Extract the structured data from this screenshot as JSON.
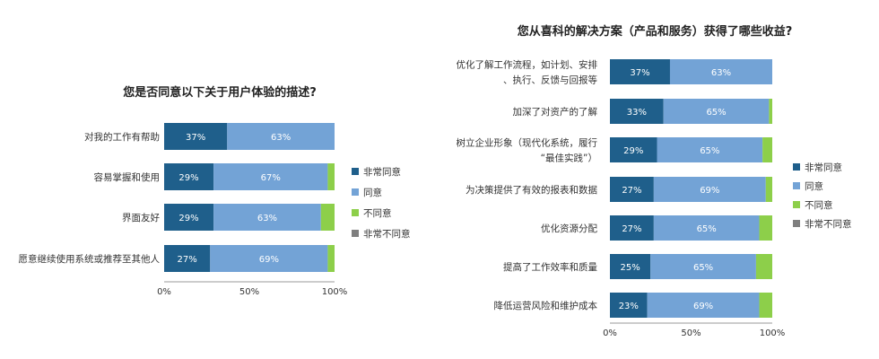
{
  "chart_data": [
    {
      "type": "bar",
      "orientation": "horizontal",
      "stacked": true,
      "percent_stacked": true,
      "title": "您是否同意以下关于用户体验的描述?",
      "categories": [
        "对我的工作有帮助",
        "容易掌握和使用",
        "界面友好",
        "愿意继续使用系统或推荐至其他人"
      ],
      "series": [
        {
          "name": "非常同意",
          "color": "#1f5f8b",
          "values": [
            37,
            29,
            29,
            27
          ]
        },
        {
          "name": "同意",
          "color": "#73a3d6",
          "values": [
            63,
            67,
            63,
            69
          ]
        },
        {
          "name": "不同意",
          "color": "#8dcf4a",
          "values": [
            0,
            4,
            8,
            4
          ]
        },
        {
          "name": "非常不同意",
          "color": "#7f7f7f",
          "values": [
            0,
            0,
            0,
            0
          ]
        }
      ],
      "x_ticks": [
        "0%",
        "50%",
        "100%"
      ],
      "xlim": [
        0,
        100
      ],
      "legend": "right",
      "grid": false
    },
    {
      "type": "bar",
      "orientation": "horizontal",
      "stacked": true,
      "percent_stacked": true,
      "title": "您从喜科的解决方案（产品和服务）获得了哪些收益?",
      "categories": [
        "优化了解工作流程，如计划、安排、执行、反馈与回报等",
        "加深了对资产的了解",
        "树立企业形象（现代化系统，履行“最佳实践”）",
        "为决策提供了有效的报表和数据",
        "优化资源分配",
        "提高了工作效率和质量",
        "降低运营风险和维护成本"
      ],
      "series": [
        {
          "name": "非常同意",
          "color": "#1f5f8b",
          "values": [
            37,
            33,
            29,
            27,
            27,
            25,
            23
          ]
        },
        {
          "name": "同意",
          "color": "#73a3d6",
          "values": [
            63,
            65,
            65,
            69,
            65,
            65,
            69
          ]
        },
        {
          "name": "不同意",
          "color": "#8dcf4a",
          "values": [
            0,
            2,
            6,
            4,
            8,
            10,
            8
          ]
        },
        {
          "name": "非常不同意",
          "color": "#7f7f7f",
          "values": [
            0,
            0,
            0,
            0,
            0,
            0,
            0
          ]
        }
      ],
      "x_ticks": [
        "0%",
        "50%",
        "100%"
      ],
      "xlim": [
        0,
        100
      ],
      "legend": "right",
      "grid": false
    }
  ]
}
